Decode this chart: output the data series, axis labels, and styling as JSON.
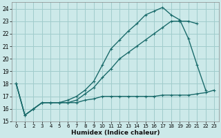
{
  "xlabel": "Humidex (Indice chaleur)",
  "bg_color": "#cce9e9",
  "grid_color": "#a0cccc",
  "line_color": "#1a6b6b",
  "xlim": [
    -0.5,
    23.5
  ],
  "ylim": [
    15,
    24.5
  ],
  "xticks": [
    0,
    1,
    2,
    3,
    4,
    5,
    6,
    7,
    8,
    9,
    10,
    11,
    12,
    13,
    14,
    15,
    16,
    17,
    18,
    19,
    20,
    21,
    22,
    23
  ],
  "yticks": [
    15,
    16,
    17,
    18,
    19,
    20,
    21,
    22,
    23,
    24
  ],
  "line_flat_x": [
    0,
    1,
    2,
    3,
    4,
    5,
    6,
    7,
    8,
    9,
    10,
    11,
    12,
    13,
    14,
    15,
    16,
    17,
    18,
    19,
    20,
    21,
    22,
    23
  ],
  "line_flat_y": [
    18,
    15.5,
    16,
    16.5,
    16.5,
    16.5,
    16.5,
    16.5,
    16.7,
    16.8,
    17.0,
    17.0,
    17.0,
    17.0,
    17.0,
    17.0,
    17.0,
    17.1,
    17.1,
    17.1,
    17.1,
    17.2,
    17.3,
    17.5
  ],
  "line_mid_x": [
    0,
    1,
    2,
    3,
    4,
    5,
    6,
    7,
    8,
    9,
    10,
    11,
    12,
    13,
    14,
    15,
    16,
    17,
    18,
    19,
    20,
    21,
    22,
    23
  ],
  "line_mid_y": [
    18,
    15.5,
    16,
    16.5,
    16.5,
    16.5,
    16.5,
    16.7,
    17.2,
    17.7,
    18.5,
    19.2,
    20.0,
    20.5,
    21.0,
    21.5,
    22.0,
    22.5,
    23.0,
    23.0,
    23.0,
    22.8,
    null,
    null
  ],
  "line_top_x": [
    0,
    1,
    2,
    3,
    4,
    5,
    6,
    7,
    8,
    9,
    10,
    11,
    12,
    13,
    14,
    15,
    16,
    17,
    18,
    19,
    20,
    21,
    22,
    23
  ],
  "line_top_y": [
    18,
    15.5,
    16,
    16.5,
    16.5,
    16.5,
    16.7,
    17.0,
    17.5,
    18.2,
    19.5,
    20.8,
    21.5,
    22.2,
    22.8,
    23.5,
    23.8,
    24.1,
    23.5,
    23.1,
    21.6,
    19.5,
    17.5,
    null
  ]
}
